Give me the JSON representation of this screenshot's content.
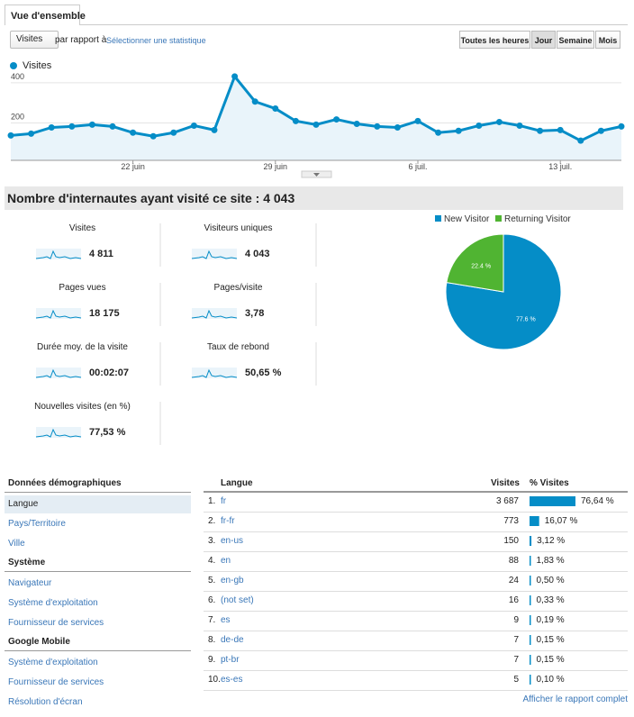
{
  "tab": "Vue d'ensemble",
  "toolbar": {
    "metric": "Visites",
    "compare": "par rapport à",
    "select_link": "Sélectionner une statistique",
    "ranges": [
      "Toutes les heures",
      "Jour",
      "Semaine",
      "Mois"
    ],
    "active_range": 1
  },
  "chart_data": [
    {
      "type": "line",
      "categories": [
        null,
        null,
        null,
        null,
        null,
        null,
        "22 juin",
        null,
        null,
        null,
        null,
        null,
        null,
        "29 juin",
        null,
        null,
        null,
        null,
        null,
        null,
        "6 juil.",
        null,
        null,
        null,
        null,
        null,
        null,
        "13 juil.",
        null,
        null,
        null
      ],
      "series": [
        {
          "name": "Visites",
          "color": "#058dc7",
          "values": [
            124,
            133,
            164,
            169,
            178,
            169,
            138,
            120,
            138,
            173,
            151,
            418,
            293,
            258,
            196,
            178,
            204,
            182,
            169,
            164,
            196,
            138,
            147,
            173,
            191,
            173,
            147,
            151,
            98,
            147,
            169
          ]
        }
      ],
      "ylim": [
        0,
        440
      ],
      "yticks": [
        200,
        400
      ],
      "grid": true
    },
    {
      "type": "pie",
      "categories": [
        "New Visitor",
        "Returning Visitor"
      ],
      "values": [
        77.6,
        22.4
      ],
      "value_labels": [
        "77.6 %",
        "22.4 %"
      ],
      "colors": [
        "#058dc7",
        "#50b432"
      ],
      "legend": "top"
    }
  ],
  "summary": {
    "title": "Nombre d'internautes ayant visité ce site : 4 043",
    "metrics": [
      {
        "label": "Visites",
        "value": "4 811"
      },
      {
        "label": "Visiteurs uniques",
        "value": "4 043"
      },
      {
        "label": "Pages vues",
        "value": "18 175"
      },
      {
        "label": "Pages/visite",
        "value": "3,78"
      },
      {
        "label": "Durée moy. de la visite",
        "value": "00:02:07"
      },
      {
        "label": "Taux de rebond",
        "value": "50,65 %"
      },
      {
        "label": "Nouvelles visites (en %)",
        "value": "77,53 %"
      }
    ]
  },
  "nav": {
    "sections": [
      {
        "title": "Données démographiques",
        "items": [
          "Langue",
          "Pays/Territoire",
          "Ville"
        ]
      },
      {
        "title": "Système",
        "items": [
          "Navigateur",
          "Système d'exploitation",
          "Fournisseur de services"
        ]
      },
      {
        "title": "Google Mobile",
        "items": [
          "Système d'exploitation",
          "Fournisseur de services",
          "Résolution d'écran"
        ]
      }
    ]
  },
  "table": {
    "headers": [
      "Langue",
      "Visites",
      "% Visites"
    ],
    "rows": [
      {
        "rank": "1.",
        "lang": "fr",
        "visits": "3 687",
        "pct": 76.64,
        "pct_label": "76,64 %"
      },
      {
        "rank": "2.",
        "lang": "fr-fr",
        "visits": "773",
        "pct": 16.07,
        "pct_label": "16,07 %"
      },
      {
        "rank": "3.",
        "lang": "en-us",
        "visits": "150",
        "pct": 3.12,
        "pct_label": "3,12 %"
      },
      {
        "rank": "4.",
        "lang": "en",
        "visits": "88",
        "pct": 1.83,
        "pct_label": "1,83 %"
      },
      {
        "rank": "5.",
        "lang": "en-gb",
        "visits": "24",
        "pct": 0.5,
        "pct_label": "0,50 %"
      },
      {
        "rank": "6.",
        "lang": "(not set)",
        "visits": "16",
        "pct": 0.33,
        "pct_label": "0,33 %"
      },
      {
        "rank": "7.",
        "lang": "es",
        "visits": "9",
        "pct": 0.19,
        "pct_label": "0,19 %"
      },
      {
        "rank": "8.",
        "lang": "de-de",
        "visits": "7",
        "pct": 0.15,
        "pct_label": "0,15 %"
      },
      {
        "rank": "9.",
        "lang": "pt-br",
        "visits": "7",
        "pct": 0.15,
        "pct_label": "0,15 %"
      },
      {
        "rank": "10.",
        "lang": "es-es",
        "visits": "5",
        "pct": 0.1,
        "pct_label": "0,10 %"
      }
    ],
    "footer_link": "Afficher le rapport complet"
  }
}
